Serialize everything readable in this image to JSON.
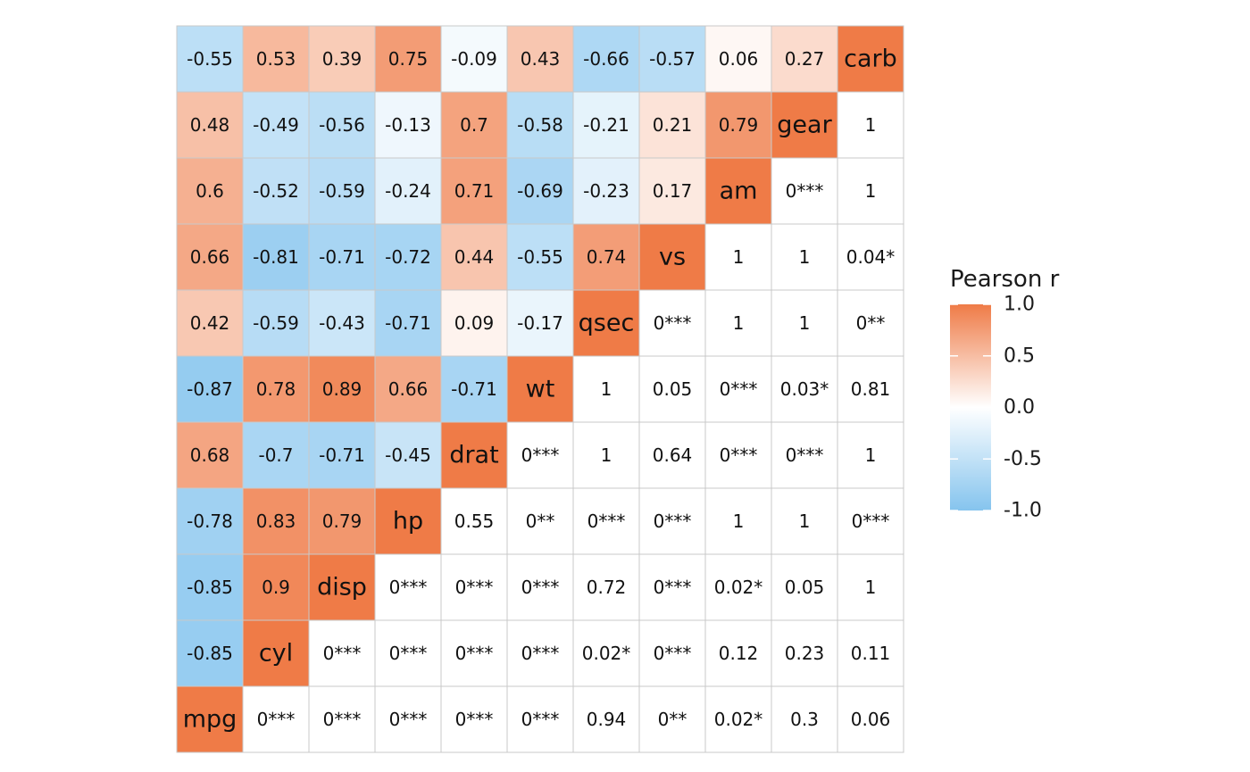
{
  "chart_data": {
    "type": "heatmap",
    "title": "",
    "xlabel": "",
    "ylabel": "",
    "variables": [
      "mpg",
      "cyl",
      "disp",
      "hp",
      "drat",
      "wt",
      "qsec",
      "vs",
      "am",
      "gear",
      "carb"
    ],
    "lower_triangle_label": "Pearson r (colored cells, column variable vs row variable)",
    "upper_triangle_label": "p-value with significance stars (uncolored cells)",
    "rows_top_to_bottom": [
      [
        "-0.55",
        "0.53",
        "0.39",
        "0.75",
        "-0.09",
        "0.43",
        "-0.66",
        "-0.57",
        "0.06",
        "0.27",
        "carb"
      ],
      [
        "0.48",
        "-0.49",
        "-0.56",
        "-0.13",
        "0.7",
        "-0.58",
        "-0.21",
        "0.21",
        "0.79",
        "gear",
        "1"
      ],
      [
        "0.6",
        "-0.52",
        "-0.59",
        "-0.24",
        "0.71",
        "-0.69",
        "-0.23",
        "0.17",
        "am",
        "0***",
        "1"
      ],
      [
        "0.66",
        "-0.81",
        "-0.71",
        "-0.72",
        "0.44",
        "-0.55",
        "0.74",
        "vs",
        "1",
        "1",
        "0.04*"
      ],
      [
        "0.42",
        "-0.59",
        "-0.43",
        "-0.71",
        "0.09",
        "-0.17",
        "qsec",
        "0***",
        "1",
        "1",
        "0**"
      ],
      [
        "-0.87",
        "0.78",
        "0.89",
        "0.66",
        "-0.71",
        "wt",
        "1",
        "0.05",
        "0***",
        "0.03*",
        "0.81"
      ],
      [
        "0.68",
        "-0.7",
        "-0.71",
        "-0.45",
        "drat",
        "0***",
        "1",
        "0.64",
        "0***",
        "0***",
        "1"
      ],
      [
        "-0.78",
        "0.83",
        "0.79",
        "hp",
        "0.55",
        "0**",
        "0***",
        "0***",
        "1",
        "1",
        "0***"
      ],
      [
        "-0.85",
        "0.9",
        "disp",
        "0***",
        "0***",
        "0***",
        "0.72",
        "0***",
        "0.02*",
        "0.05",
        "1"
      ],
      [
        "-0.85",
        "cyl",
        "0***",
        "0***",
        "0***",
        "0***",
        "0.02*",
        "0***",
        "0.12",
        "0.23",
        "0.11"
      ],
      [
        "mpg",
        "0***",
        "0***",
        "0***",
        "0***",
        "0***",
        "0.94",
        "0**",
        "0.02*",
        "0.3",
        "0.06"
      ]
    ],
    "color_scale": {
      "low": "#85C4EE",
      "mid": "#FFFFFF",
      "high": "#EF7B47",
      "domain": [
        -1.0,
        1.0
      ]
    },
    "legend": {
      "title": "Pearson r",
      "position": "right",
      "ticks": [
        "1.0",
        "0.5",
        "0.0",
        "-0.5",
        "-1.0"
      ],
      "tick_values": [
        1.0,
        0.5,
        0.0,
        -0.5,
        -1.0
      ]
    }
  }
}
